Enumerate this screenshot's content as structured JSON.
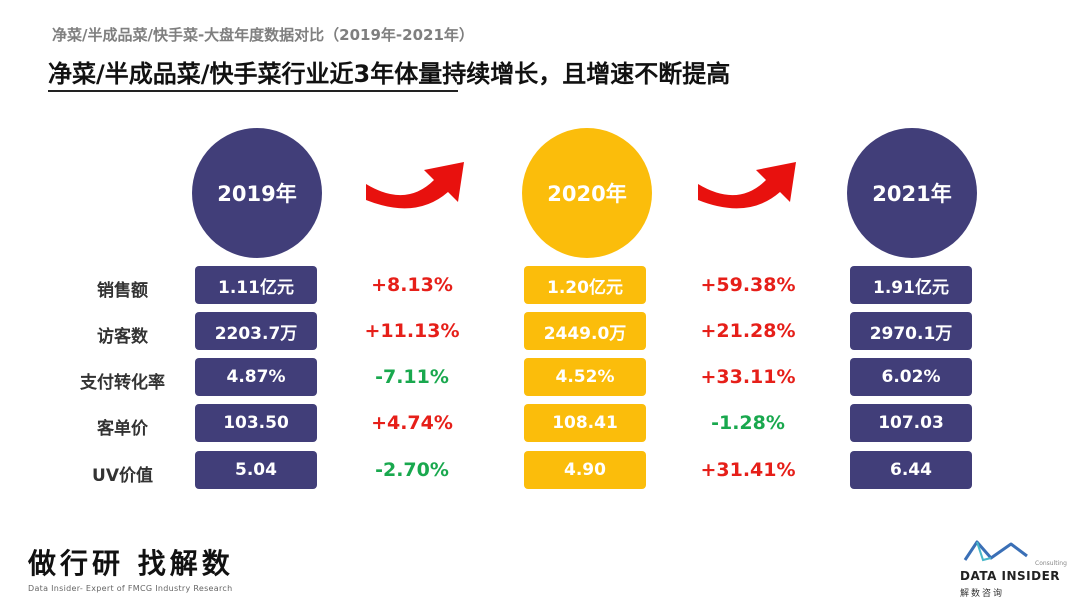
{
  "header": {
    "subtitle": "净菜/半成品菜/快手菜-大盘年度数据对比（2019年-2021年）",
    "title": "净菜/半成品菜/快手菜行业近3年体量持续增长，且增速不断提高"
  },
  "years": [
    "2019年",
    "2020年",
    "2021年"
  ],
  "row_labels": [
    "销售额",
    "访客数",
    "支付转化率",
    "客单价",
    "UV价值"
  ],
  "values": {
    "y2019": [
      "1.11亿元",
      "2203.7万",
      "4.87%",
      "103.50",
      "5.04"
    ],
    "y2020": [
      "1.20亿元",
      "2449.0万",
      "4.52%",
      "108.41",
      "4.90"
    ],
    "y2021": [
      "1.91亿元",
      "2970.1万",
      "6.02%",
      "107.03",
      "6.44"
    ]
  },
  "growth": {
    "g2019_2020": [
      "+8.13%",
      "+11.13%",
      "-7.11%",
      "+4.74%",
      "-2.70%"
    ],
    "g2020_2021": [
      "+59.38%",
      "+21.28%",
      "+33.11%",
      "-1.28%",
      "+31.41%"
    ]
  },
  "colors": {
    "navy": "#413e79",
    "gold": "#fbbd0b",
    "increase": "#e61f19",
    "decrease": "#19a84e",
    "arrow": "#e8110e"
  },
  "icons": [
    "growth-arrow-icon",
    "data-insider-logo"
  ],
  "footer": {
    "slogan": "做行研 找解数",
    "slogan_sub": "Data Insider- Expert of FMCG Industry Research",
    "logo_small": "Consulting",
    "logo_name": "DATA INSIDER",
    "logo_cn": "解数咨询"
  }
}
